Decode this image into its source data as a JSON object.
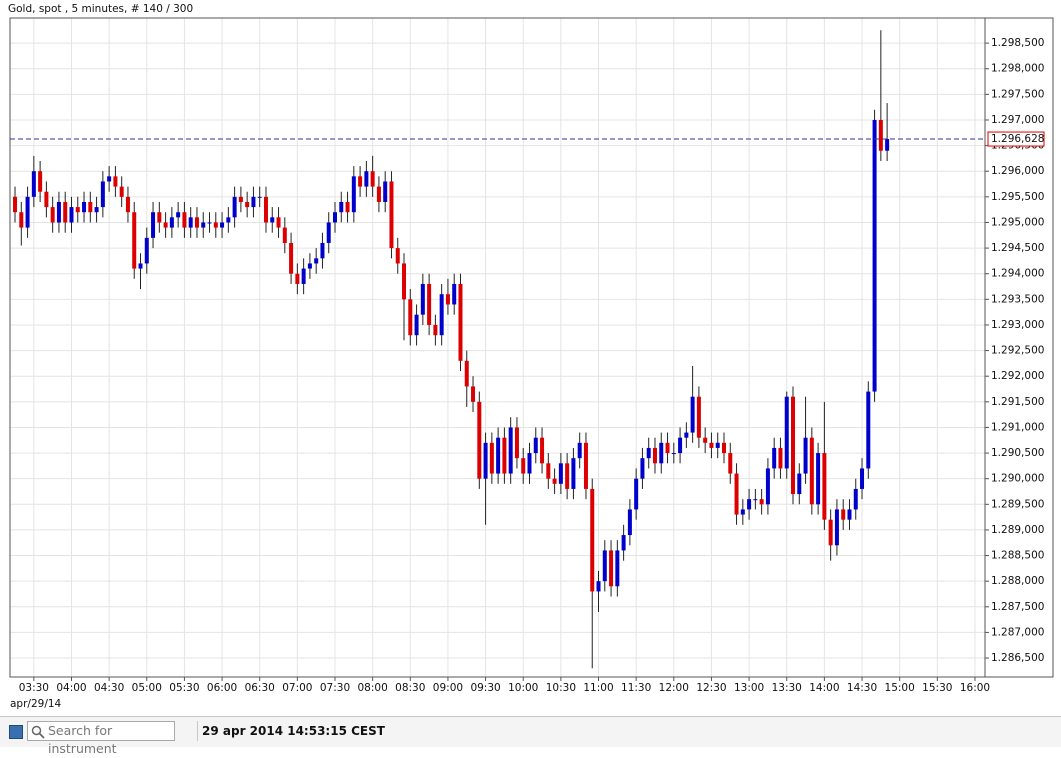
{
  "chart_data": {
    "type": "candlestick",
    "title": "Gold, spot , 5 minutes, # 140 / 300",
    "date_label": "apr/29/14",
    "up_color": "#0000cc",
    "down_color": "#dd0000",
    "grid": true,
    "x": [
      195,
      200,
      205,
      210,
      215,
      220,
      225,
      230,
      235,
      240,
      245,
      250,
      255,
      260,
      265,
      270,
      275,
      280,
      285,
      290,
      295,
      300,
      305,
      310,
      315,
      320,
      325,
      330,
      335,
      340,
      345,
      350,
      355,
      360,
      365,
      370,
      375,
      380,
      385,
      390,
      395,
      400,
      405,
      410,
      415,
      420,
      425,
      430,
      435,
      440,
      445,
      450,
      455,
      460,
      465,
      470,
      475,
      480,
      485,
      490,
      495,
      500,
      505,
      510,
      515,
      520,
      525,
      530,
      535,
      540,
      545,
      550,
      555,
      560,
      565,
      570,
      575,
      580,
      585,
      590,
      595,
      600,
      605,
      610,
      615,
      620,
      625,
      630,
      635,
      640,
      645,
      650,
      655,
      660,
      665,
      670,
      675,
      680,
      685,
      690,
      695,
      700,
      705,
      710,
      715,
      720,
      725,
      730,
      735,
      740,
      745,
      750,
      755,
      760,
      765,
      770,
      775,
      780,
      785,
      790,
      795,
      800,
      805,
      810,
      815,
      820,
      825,
      830,
      835,
      840,
      845,
      850,
      855,
      860,
      865,
      870,
      875,
      880,
      885,
      890
    ],
    "open": [
      1295.5,
      1295.2,
      1294.9,
      1295.5,
      1296.0,
      1295.6,
      1295.3,
      1295.0,
      1295.4,
      1295.0,
      1295.3,
      1295.2,
      1295.4,
      1295.2,
      1295.3,
      1295.8,
      1295.9,
      1295.7,
      1295.5,
      1295.2,
      1294.1,
      1294.2,
      1294.7,
      1295.2,
      1295.0,
      1294.9,
      1295.1,
      1295.2,
      1294.9,
      1295.1,
      1294.9,
      1295.0,
      1295.0,
      1294.9,
      1295.0,
      1295.1,
      1295.5,
      1295.4,
      1295.3,
      1295.5,
      1295.5,
      1295.0,
      1295.1,
      1294.9,
      1294.6,
      1294.0,
      1293.8,
      1294.1,
      1294.2,
      1294.3,
      1294.6,
      1295.0,
      1295.2,
      1295.4,
      1295.2,
      1295.9,
      1295.7,
      1296.0,
      1295.7,
      1295.4,
      1295.8,
      1294.5,
      1294.2,
      1293.5,
      1292.8,
      1293.2,
      1293.8,
      1293.0,
      1292.8,
      1293.6,
      1293.4,
      1293.8,
      1292.3,
      1291.8,
      1291.5,
      1290.0,
      1290.7,
      1290.1,
      1290.8,
      1290.1,
      1291.0,
      1290.4,
      1290.1,
      1290.5,
      1290.8,
      1290.3,
      1290.0,
      1289.9,
      1290.3,
      1289.8,
      1290.4,
      1290.7,
      1289.8,
      1287.8,
      1288.0,
      1288.6,
      1287.9,
      1288.6,
      1288.9,
      1289.4,
      1290.0,
      1290.4,
      1290.6,
      1290.3,
      1290.7,
      1290.5,
      1290.5,
      1290.8,
      1290.9,
      1291.6,
      1290.8,
      1290.7,
      1290.6,
      1290.7,
      1290.5,
      1290.1,
      1289.3,
      1289.4,
      1289.6,
      1289.6,
      1289.5,
      1290.2,
      1290.6,
      1290.2,
      1291.6,
      1289.7,
      1290.1,
      1290.8,
      1289.5,
      1290.5,
      1289.2,
      1288.7,
      1289.4,
      1289.2,
      1289.4,
      1289.8,
      1290.2,
      1291.7,
      1297.0,
      1296.4
    ],
    "high": [
      1295.7,
      1295.4,
      1295.7,
      1296.3,
      1296.2,
      1295.8,
      1295.5,
      1295.6,
      1295.6,
      1295.5,
      1295.5,
      1295.6,
      1295.6,
      1295.5,
      1296.0,
      1296.1,
      1296.1,
      1295.9,
      1295.7,
      1295.4,
      1294.4,
      1294.9,
      1295.4,
      1295.4,
      1295.2,
      1295.3,
      1295.4,
      1295.4,
      1295.3,
      1295.3,
      1295.2,
      1295.2,
      1295.2,
      1295.2,
      1295.3,
      1295.7,
      1295.7,
      1295.6,
      1295.7,
      1295.7,
      1295.7,
      1295.3,
      1295.3,
      1295.1,
      1294.8,
      1294.2,
      1294.3,
      1294.4,
      1294.5,
      1294.8,
      1295.2,
      1295.4,
      1295.6,
      1295.6,
      1296.1,
      1296.1,
      1296.2,
      1296.3,
      1295.9,
      1296.0,
      1296.0,
      1294.7,
      1294.4,
      1293.7,
      1293.4,
      1294.0,
      1294.0,
      1293.2,
      1293.8,
      1293.9,
      1294.0,
      1294.0,
      1292.5,
      1292.0,
      1291.7,
      1290.9,
      1290.9,
      1291.0,
      1291.0,
      1291.2,
      1291.2,
      1290.6,
      1290.7,
      1291.0,
      1291.0,
      1290.5,
      1290.2,
      1290.5,
      1290.5,
      1290.6,
      1290.9,
      1290.9,
      1290.0,
      1288.2,
      1288.8,
      1288.8,
      1288.8,
      1289.1,
      1289.6,
      1290.2,
      1290.6,
      1290.8,
      1290.8,
      1290.9,
      1290.9,
      1290.7,
      1291.0,
      1291.1,
      1292.2,
      1291.8,
      1291.0,
      1290.9,
      1290.9,
      1290.9,
      1290.7,
      1290.3,
      1289.6,
      1289.8,
      1289.8,
      1289.8,
      1290.4,
      1290.8,
      1290.8,
      1291.7,
      1291.8,
      1290.3,
      1291.6,
      1291.0,
      1290.7,
      1291.5,
      1289.4,
      1289.6,
      1289.6,
      1289.6,
      1290.0,
      1290.4,
      1291.9,
      1297.2,
      1298.75,
      1297.33
    ],
    "low": [
      1295.0,
      1294.55,
      1294.7,
      1295.3,
      1295.4,
      1295.1,
      1294.8,
      1294.8,
      1294.8,
      1294.8,
      1295.0,
      1295.0,
      1295.0,
      1295.0,
      1295.1,
      1295.6,
      1295.5,
      1295.3,
      1295.0,
      1293.9,
      1293.7,
      1294.0,
      1294.5,
      1294.8,
      1294.7,
      1294.7,
      1294.9,
      1294.7,
      1294.7,
      1294.7,
      1294.7,
      1294.8,
      1294.7,
      1294.7,
      1294.8,
      1294.9,
      1295.2,
      1295.1,
      1295.1,
      1295.3,
      1294.8,
      1294.8,
      1294.7,
      1294.4,
      1293.8,
      1293.6,
      1293.6,
      1293.9,
      1294.0,
      1294.1,
      1294.4,
      1294.8,
      1295.0,
      1295.0,
      1295.0,
      1295.5,
      1295.5,
      1295.5,
      1295.2,
      1295.2,
      1294.3,
      1294.0,
      1292.7,
      1292.6,
      1292.6,
      1293.0,
      1292.8,
      1292.6,
      1292.6,
      1293.2,
      1293.2,
      1292.1,
      1291.4,
      1291.3,
      1289.8,
      1289.1,
      1289.9,
      1289.9,
      1289.9,
      1289.9,
      1290.2,
      1289.9,
      1289.9,
      1290.3,
      1290.1,
      1289.8,
      1289.7,
      1289.7,
      1289.6,
      1289.6,
      1290.2,
      1289.6,
      1286.3,
      1287.4,
      1287.8,
      1287.7,
      1287.7,
      1288.4,
      1288.7,
      1289.2,
      1289.8,
      1290.2,
      1290.1,
      1290.1,
      1290.3,
      1290.3,
      1290.3,
      1290.6,
      1290.7,
      1290.6,
      1290.5,
      1290.4,
      1290.4,
      1290.3,
      1289.9,
      1289.1,
      1289.1,
      1289.2,
      1289.4,
      1289.3,
      1289.3,
      1290.0,
      1290.0,
      1290.0,
      1289.5,
      1289.5,
      1289.9,
      1289.3,
      1289.3,
      1289.0,
      1288.4,
      1288.5,
      1289.0,
      1289.0,
      1289.2,
      1289.6,
      1290.0,
      1291.5,
      1296.2,
      1296.2
    ],
    "close": [
      1295.2,
      1294.9,
      1295.5,
      1296.0,
      1295.6,
      1295.3,
      1295.0,
      1295.4,
      1295.0,
      1295.3,
      1295.2,
      1295.4,
      1295.2,
      1295.3,
      1295.8,
      1295.9,
      1295.7,
      1295.5,
      1295.2,
      1294.1,
      1294.2,
      1294.7,
      1295.2,
      1295.0,
      1294.9,
      1295.1,
      1295.2,
      1294.9,
      1295.1,
      1294.9,
      1295.0,
      1295.0,
      1294.9,
      1295.0,
      1295.1,
      1295.5,
      1295.4,
      1295.3,
      1295.5,
      1295.5,
      1295.0,
      1295.1,
      1294.9,
      1294.6,
      1294.0,
      1293.8,
      1294.1,
      1294.2,
      1294.3,
      1294.6,
      1295.0,
      1295.2,
      1295.4,
      1295.2,
      1295.9,
      1295.7,
      1296.0,
      1295.7,
      1295.4,
      1295.8,
      1294.5,
      1294.2,
      1293.5,
      1292.8,
      1293.2,
      1293.8,
      1293.0,
      1292.8,
      1293.6,
      1293.4,
      1293.8,
      1292.3,
      1291.8,
      1291.5,
      1290.0,
      1290.7,
      1290.1,
      1290.8,
      1290.1,
      1291.0,
      1290.4,
      1290.1,
      1290.5,
      1290.8,
      1290.3,
      1290.0,
      1289.9,
      1290.3,
      1289.8,
      1290.4,
      1290.7,
      1289.8,
      1287.8,
      1288.0,
      1288.6,
      1287.9,
      1288.6,
      1288.9,
      1289.4,
      1290.0,
      1290.4,
      1290.6,
      1290.3,
      1290.7,
      1290.5,
      1290.5,
      1290.8,
      1290.9,
      1291.6,
      1290.8,
      1290.7,
      1290.6,
      1290.7,
      1290.5,
      1290.1,
      1289.3,
      1289.4,
      1289.6,
      1289.6,
      1289.5,
      1290.2,
      1290.6,
      1290.2,
      1291.6,
      1289.7,
      1290.1,
      1290.8,
      1289.5,
      1290.5,
      1289.2,
      1288.7,
      1289.4,
      1289.2,
      1289.4,
      1289.8,
      1290.2,
      1291.7,
      1297.0,
      1296.4,
      1296.628
    ],
    "last_price": {
      "value": 1296.628,
      "label": "1.296,628",
      "color": "#333399"
    },
    "xlim": [
      191,
      968
    ],
    "ylim": [
      1286.13,
      1298.99
    ],
    "xticks": [
      {
        "value": 210,
        "label": "03:30"
      },
      {
        "value": 240,
        "label": "04:00"
      },
      {
        "value": 270,
        "label": "04:30"
      },
      {
        "value": 300,
        "label": "05:00"
      },
      {
        "value": 330,
        "label": "05:30"
      },
      {
        "value": 360,
        "label": "06:00"
      },
      {
        "value": 390,
        "label": "06:30"
      },
      {
        "value": 420,
        "label": "07:00"
      },
      {
        "value": 450,
        "label": "07:30"
      },
      {
        "value": 480,
        "label": "08:00"
      },
      {
        "value": 510,
        "label": "08:30"
      },
      {
        "value": 540,
        "label": "09:00"
      },
      {
        "value": 570,
        "label": "09:30"
      },
      {
        "value": 600,
        "label": "10:00"
      },
      {
        "value": 630,
        "label": "10:30"
      },
      {
        "value": 660,
        "label": "11:00"
      },
      {
        "value": 690,
        "label": "11:30"
      },
      {
        "value": 720,
        "label": "12:00"
      },
      {
        "value": 750,
        "label": "12:30"
      },
      {
        "value": 780,
        "label": "13:00"
      },
      {
        "value": 810,
        "label": "13:30"
      },
      {
        "value": 840,
        "label": "14:00"
      },
      {
        "value": 870,
        "label": "14:30"
      },
      {
        "value": 900,
        "label": "15:00"
      },
      {
        "value": 930,
        "label": "15:30"
      },
      {
        "value": 960,
        "label": "16:00"
      }
    ],
    "yticks": [
      {
        "value": 1286.5,
        "label": "1.286,500"
      },
      {
        "value": 1287.0,
        "label": "1.287,000"
      },
      {
        "value": 1287.5,
        "label": "1.287,500"
      },
      {
        "value": 1288.0,
        "label": "1.288,000"
      },
      {
        "value": 1288.5,
        "label": "1.288,500"
      },
      {
        "value": 1289.0,
        "label": "1.289,000"
      },
      {
        "value": 1289.5,
        "label": "1.289,500"
      },
      {
        "value": 1290.0,
        "label": "1.290,000"
      },
      {
        "value": 1290.5,
        "label": "1.290,500"
      },
      {
        "value": 1291.0,
        "label": "1.291,000"
      },
      {
        "value": 1291.5,
        "label": "1.291,500"
      },
      {
        "value": 1292.0,
        "label": "1.292,000"
      },
      {
        "value": 1292.5,
        "label": "1.292,500"
      },
      {
        "value": 1293.0,
        "label": "1.293,000"
      },
      {
        "value": 1293.5,
        "label": "1.293,500"
      },
      {
        "value": 1294.0,
        "label": "1.294,000"
      },
      {
        "value": 1294.5,
        "label": "1.294,500"
      },
      {
        "value": 1295.0,
        "label": "1.295,000"
      },
      {
        "value": 1295.5,
        "label": "1.295,500"
      },
      {
        "value": 1296.0,
        "label": "1.296,000"
      },
      {
        "value": 1296.5,
        "label": "1.296,500"
      },
      {
        "value": 1297.0,
        "label": "1.297,000"
      },
      {
        "value": 1297.5,
        "label": "1.297,500"
      },
      {
        "value": 1298.0,
        "label": "1.298,000"
      },
      {
        "value": 1298.5,
        "label": "1.298,500"
      }
    ]
  },
  "status_bar": {
    "search_placeholder": "Search for instrument",
    "timestamp": "29 apr 2014 14:53:15 CEST"
  }
}
